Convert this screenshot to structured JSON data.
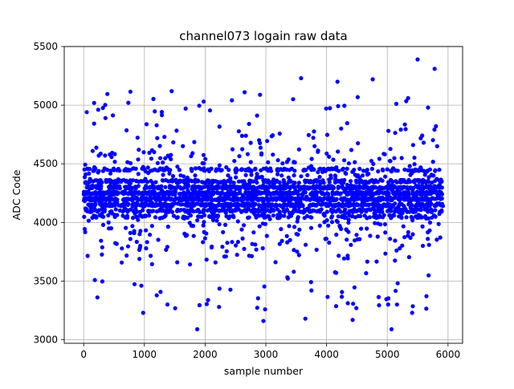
{
  "chart_data": {
    "type": "scatter",
    "title": "channel073 logain raw data",
    "xlabel": "sample number",
    "ylabel": "ADC Code",
    "xlim": [
      -320,
      6240
    ],
    "ylim": [
      2970,
      5500
    ],
    "xticks": [
      0,
      1000,
      2000,
      3000,
      4000,
      5000,
      6000
    ],
    "yticks": [
      3000,
      3500,
      4000,
      4500,
      5000,
      5500
    ],
    "x_range": [
      0,
      5920
    ],
    "grid": true,
    "marker_color": "#0000ff",
    "marker": "circle",
    "series": [
      {
        "distribution": "noisy samples concentrated in bands around 4100-4350 ADC codes, outliers spread 3090-5390",
        "n_points": 5920,
        "bands": [
          {
            "value": 4100,
            "share": 0.09
          },
          {
            "value": 4150,
            "share": 0.14
          },
          {
            "value": 4200,
            "share": 0.18
          },
          {
            "value": 4250,
            "share": 0.18
          },
          {
            "value": 4300,
            "share": 0.14
          },
          {
            "value": 4350,
            "share": 0.09
          },
          {
            "value": 4450,
            "share": 0.06
          },
          {
            "value": 4050,
            "share": 0.04
          }
        ],
        "notable_points": [
          {
            "x": 5500,
            "y": 5390
          },
          {
            "x": 5780,
            "y": 5310
          },
          {
            "x": 3580,
            "y": 5230
          },
          {
            "x": 4760,
            "y": 5220
          },
          {
            "x": 4180,
            "y": 5200
          },
          {
            "x": 1450,
            "y": 5120
          },
          {
            "x": 770,
            "y": 5115
          },
          {
            "x": 2650,
            "y": 5110
          },
          {
            "x": 390,
            "y": 5095
          },
          {
            "x": 1870,
            "y": 3090
          },
          {
            "x": 5070,
            "y": 3090
          },
          {
            "x": 2960,
            "y": 3160
          },
          {
            "x": 4430,
            "y": 3170
          },
          {
            "x": 3650,
            "y": 3180
          },
          {
            "x": 980,
            "y": 3230
          },
          {
            "x": 5410,
            "y": 3230
          },
          {
            "x": 4490,
            "y": 3270
          },
          {
            "x": 2230,
            "y": 3280
          },
          {
            "x": 1380,
            "y": 3300
          },
          {
            "x": 5160,
            "y": 3300
          }
        ]
      }
    ]
  }
}
